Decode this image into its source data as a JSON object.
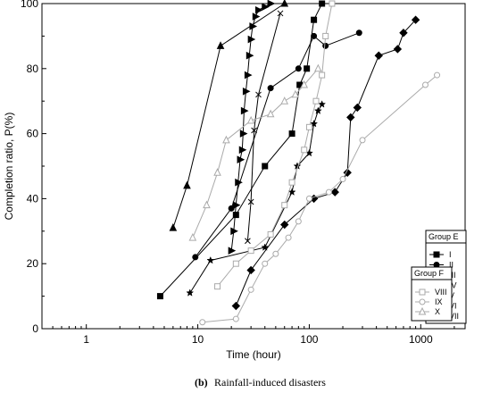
{
  "chart_data": {
    "type": "line",
    "xscale": "log",
    "xlabel": "Time (hour)",
    "ylabel": "Completion ratio, P(%)",
    "xlim": [
      0.4,
      2500
    ],
    "ylim": [
      0,
      100
    ],
    "x_ticks": [
      1,
      10,
      100,
      1000
    ],
    "x_tick_labels": [
      "1",
      "10",
      "100",
      "1000"
    ],
    "y_ticks": [
      0,
      20,
      40,
      60,
      80,
      100
    ],
    "y_tick_labels": [
      "0",
      "20",
      "40",
      "60",
      "80",
      "100"
    ],
    "grid": false,
    "caption_label": "(b)",
    "caption_text": "Rainfall-induced disasters",
    "legends": [
      {
        "title": "Group E",
        "series": [
          "I",
          "II",
          "III",
          "IV",
          "V",
          "VI",
          "VII"
        ]
      },
      {
        "title": "Group F",
        "series": [
          "VIII",
          "IX",
          "X"
        ]
      }
    ],
    "series": [
      {
        "name": "I",
        "marker": "square",
        "color": "#000000",
        "x": [
          4.6,
          22,
          40,
          70,
          82,
          95,
          110,
          130
        ],
        "y": [
          10,
          35,
          50,
          60,
          75,
          80,
          95,
          100
        ]
      },
      {
        "name": "II",
        "marker": "circle",
        "color": "#000000",
        "x": [
          9.5,
          20,
          45,
          80,
          110,
          140,
          280
        ],
        "y": [
          22,
          37,
          74,
          80,
          90,
          87,
          91
        ]
      },
      {
        "name": "III",
        "marker": "triangle-up",
        "color": "#000000",
        "x": [
          6,
          8,
          16,
          60
        ],
        "y": [
          31,
          44,
          87,
          100
        ]
      },
      {
        "name": "IV",
        "marker": "x",
        "color": "#000000",
        "x": [
          28,
          30,
          32,
          35,
          55
        ],
        "y": [
          27,
          39,
          61,
          72,
          97
        ]
      },
      {
        "name": "V",
        "marker": "diamond",
        "color": "#000000",
        "x": [
          22,
          30,
          60,
          110,
          170,
          220,
          235,
          270,
          420,
          620,
          700,
          900
        ],
        "y": [
          7,
          18,
          32,
          40,
          42,
          48,
          65,
          68,
          84,
          86,
          91,
          95
        ]
      },
      {
        "name": "VI",
        "marker": "star",
        "color": "#000000",
        "x": [
          8.5,
          13,
          40,
          70,
          78,
          100,
          110,
          120,
          130
        ],
        "y": [
          11,
          21,
          25,
          42,
          50,
          54,
          63,
          67,
          69
        ]
      },
      {
        "name": "VII",
        "marker": "triangle-right",
        "color": "#000000",
        "x": [
          20,
          21,
          22,
          23,
          24,
          25,
          25.5,
          26,
          27,
          28,
          29,
          30,
          31,
          33,
          35,
          40,
          45
        ],
        "y": [
          24,
          30,
          38,
          45,
          52,
          55,
          60,
          67,
          73,
          78,
          84,
          89,
          93,
          96,
          98,
          99,
          100
        ]
      },
      {
        "name": "VIII",
        "marker": "open-square",
        "color": "#aaaaaa",
        "x": [
          15,
          22,
          30,
          45,
          60,
          70,
          90,
          100,
          115,
          130,
          140,
          160
        ],
        "y": [
          13,
          20,
          24,
          29,
          38,
          45,
          55,
          62,
          70,
          78,
          90,
          100
        ]
      },
      {
        "name": "IX",
        "marker": "open-circle",
        "color": "#aaaaaa",
        "x": [
          11,
          22,
          30,
          40,
          50,
          65,
          80,
          100,
          150,
          200,
          300,
          1100,
          1400
        ],
        "y": [
          2,
          3,
          12,
          20,
          23,
          28,
          33,
          40,
          42,
          46,
          58,
          75,
          78
        ]
      },
      {
        "name": "X",
        "marker": "open-triangle",
        "color": "#aaaaaa",
        "x": [
          9,
          12,
          15,
          18,
          30,
          45,
          60,
          75,
          90,
          120
        ],
        "y": [
          28,
          38,
          48,
          58,
          64,
          66,
          70,
          72,
          75,
          80
        ]
      }
    ]
  }
}
